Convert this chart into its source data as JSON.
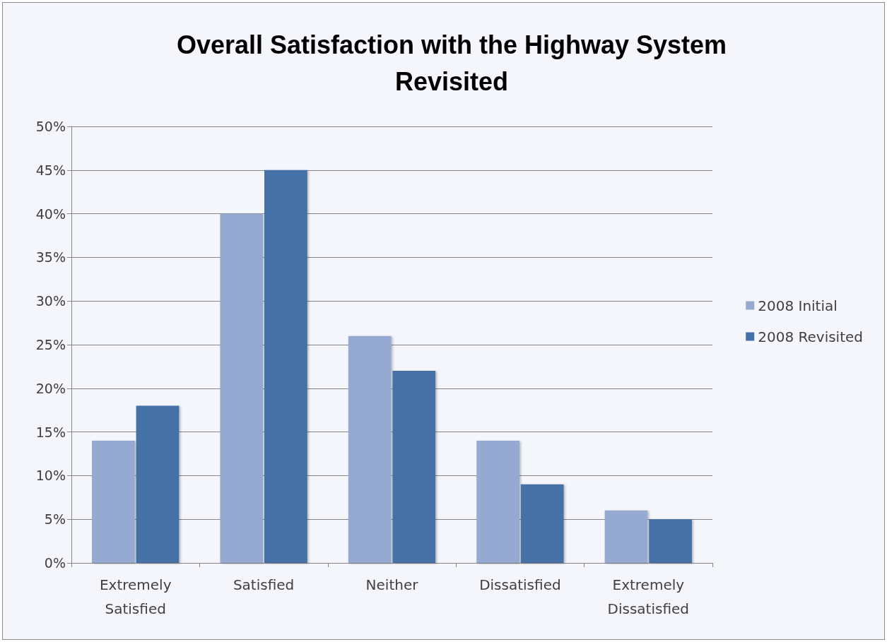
{
  "chart_data": {
    "type": "bar",
    "title": "Overall Satisfaction with the Highway System\nRevisited",
    "categories": [
      "Extremely\nSatisfied",
      "Satisfied",
      "Neither",
      "Dissatisfied",
      "Extremely\nDissatisfied"
    ],
    "series": [
      {
        "name": "2008 Initial",
        "color": "#95a9d1",
        "values": [
          14,
          40,
          26,
          14,
          6
        ]
      },
      {
        "name": "2008 Revisited",
        "color": "#4471a7",
        "values": [
          18,
          45,
          22,
          9,
          5
        ]
      }
    ],
    "ylim": [
      0,
      50
    ],
    "yticks": [
      {
        "value": 0,
        "label": "0%"
      },
      {
        "value": 5,
        "label": "5%"
      },
      {
        "value": 10,
        "label": "10%"
      },
      {
        "value": 15,
        "label": "15%"
      },
      {
        "value": 20,
        "label": "20%"
      },
      {
        "value": 25,
        "label": "25%"
      },
      {
        "value": 30,
        "label": "30%"
      },
      {
        "value": 35,
        "label": "35%"
      },
      {
        "value": 40,
        "label": "40%"
      },
      {
        "value": 45,
        "label": "45%"
      },
      {
        "value": 50,
        "label": "50%"
      }
    ],
    "grid": "y",
    "legend": "right"
  }
}
